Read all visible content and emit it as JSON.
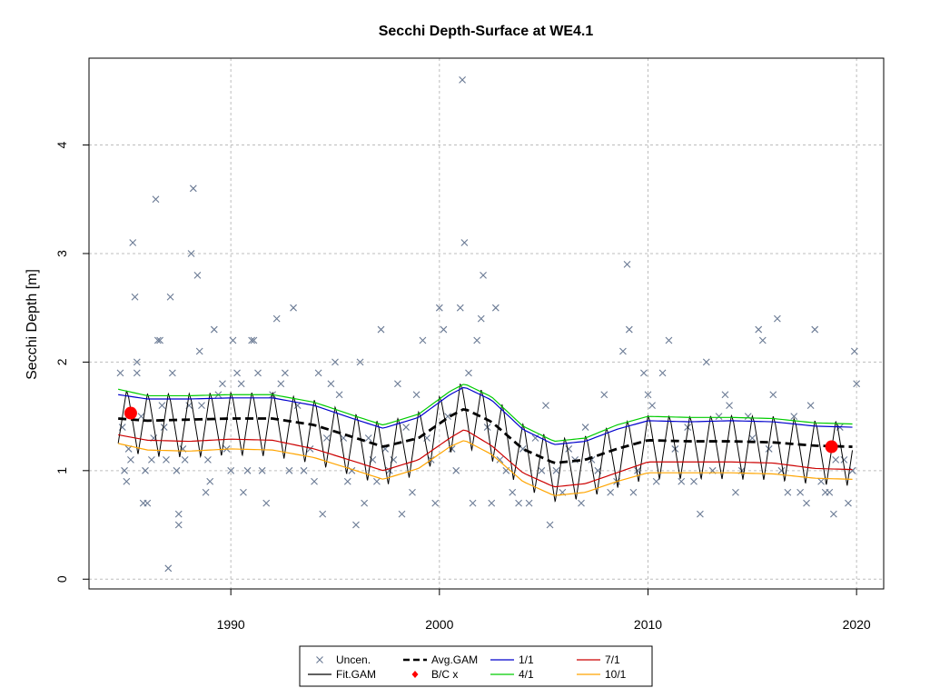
{
  "chart_data": {
    "type": "line",
    "title": "Secchi Depth-Surface at WE4.1",
    "xlabel": "",
    "ylabel": "Secchi Depth [m]",
    "xlim": [
      1983.2,
      2021.3
    ],
    "ylim": [
      -0.09,
      4.8
    ],
    "x_ticks": [
      1990,
      2000,
      2010,
      2020
    ],
    "y_ticks": [
      0,
      1,
      2,
      3,
      4
    ],
    "grid": true,
    "legend_placement": "bottom-center",
    "legend": [
      {
        "label": "Uncen.",
        "style": "cross",
        "color": "#6a7a94"
      },
      {
        "label": "Fit.GAM",
        "style": "line",
        "color": "#000000"
      },
      {
        "label": "Avg.GAM",
        "style": "dashed",
        "color": "#000000"
      },
      {
        "label": "B/C x",
        "style": "diamond",
        "color": "#ff0000"
      },
      {
        "label": "1/1",
        "style": "line",
        "color": "#0000cc"
      },
      {
        "label": "4/1",
        "style": "line",
        "color": "#00cc00"
      },
      {
        "label": "7/1",
        "style": "line",
        "color": "#cc0000"
      },
      {
        "label": "10/1",
        "style": "line",
        "color": "#ffa500"
      }
    ],
    "series": [
      {
        "name": "Avg.GAM",
        "x": [
          1984.6,
          1986,
          1988,
          1990,
          1992,
          1994,
          1996,
          1997.3,
          1999,
          2000.5,
          2001.2,
          2002.5,
          2004,
          2005.5,
          2007,
          2008.5,
          2010,
          2012,
          2014,
          2016,
          2018,
          2019.8
        ],
        "y": [
          1.48,
          1.46,
          1.47,
          1.48,
          1.48,
          1.42,
          1.3,
          1.22,
          1.3,
          1.5,
          1.57,
          1.45,
          1.2,
          1.07,
          1.1,
          1.2,
          1.28,
          1.27,
          1.27,
          1.26,
          1.23,
          1.22
        ]
      },
      {
        "name": "1/1",
        "x": [
          1984.6,
          1986,
          1988,
          1990,
          1992,
          1994,
          1996,
          1997.3,
          1999,
          2000.5,
          2001.2,
          2002.5,
          2004,
          2005.5,
          2007,
          2008.5,
          2010,
          2012,
          2014,
          2016,
          2018,
          2019.8
        ],
        "y": [
          1.7,
          1.66,
          1.66,
          1.67,
          1.67,
          1.6,
          1.47,
          1.39,
          1.49,
          1.7,
          1.77,
          1.65,
          1.38,
          1.24,
          1.27,
          1.38,
          1.46,
          1.45,
          1.46,
          1.45,
          1.41,
          1.4
        ]
      },
      {
        "name": "4/1",
        "x": [
          1984.6,
          1986,
          1988,
          1990,
          1992,
          1994,
          1996,
          1997.3,
          1999,
          2000.5,
          2001.2,
          2002.5,
          2004,
          2005.5,
          2007,
          2008.5,
          2010,
          2012,
          2014,
          2016,
          2018,
          2019.8
        ],
        "y": [
          1.75,
          1.69,
          1.69,
          1.7,
          1.7,
          1.63,
          1.5,
          1.42,
          1.52,
          1.73,
          1.8,
          1.68,
          1.41,
          1.27,
          1.3,
          1.42,
          1.5,
          1.49,
          1.49,
          1.48,
          1.44,
          1.43
        ]
      },
      {
        "name": "7/1",
        "x": [
          1984.6,
          1986,
          1988,
          1990,
          1992,
          1994,
          1996,
          1997.3,
          1999,
          2000.5,
          2001.2,
          2002.5,
          2004,
          2005.5,
          2007,
          2008.5,
          2010,
          2012,
          2014,
          2016,
          2018,
          2019.8
        ],
        "y": [
          1.33,
          1.28,
          1.27,
          1.29,
          1.28,
          1.2,
          1.08,
          1.0,
          1.1,
          1.3,
          1.38,
          1.23,
          0.98,
          0.85,
          0.88,
          0.98,
          1.08,
          1.08,
          1.08,
          1.07,
          1.02,
          1.01
        ]
      },
      {
        "name": "10/1",
        "x": [
          1984.6,
          1986,
          1988,
          1990,
          1992,
          1994,
          1996,
          1997.3,
          1999,
          2000.5,
          2001.2,
          2002.5,
          2004,
          2005.5,
          2007,
          2008.5,
          2010,
          2012,
          2014,
          2016,
          2018,
          2019.8
        ],
        "y": [
          1.25,
          1.19,
          1.18,
          1.2,
          1.19,
          1.12,
          1.0,
          0.92,
          1.02,
          1.22,
          1.28,
          1.15,
          0.9,
          0.77,
          0.8,
          0.9,
          0.98,
          0.98,
          0.98,
          0.97,
          0.93,
          0.92
        ]
      }
    ],
    "bc_points": [
      {
        "x": 1985.2,
        "y": 1.53
      },
      {
        "x": 2018.8,
        "y": 1.22
      }
    ],
    "uncen_points": [
      [
        1984.7,
        1.9
      ],
      [
        1984.8,
        1.4
      ],
      [
        1984.9,
        1.0
      ],
      [
        1985.0,
        0.9
      ],
      [
        1985.1,
        1.2
      ],
      [
        1985.2,
        1.1
      ],
      [
        1985.3,
        3.1
      ],
      [
        1985.4,
        2.6
      ],
      [
        1985.5,
        2.0
      ],
      [
        1985.5,
        1.9
      ],
      [
        1985.7,
        1.5
      ],
      [
        1985.8,
        0.7
      ],
      [
        1985.9,
        1.0
      ],
      [
        1986.0,
        0.7
      ],
      [
        1986.2,
        1.1
      ],
      [
        1986.3,
        1.3
      ],
      [
        1986.4,
        3.5
      ],
      [
        1986.5,
        2.2
      ],
      [
        1986.6,
        2.2
      ],
      [
        1986.7,
        1.6
      ],
      [
        1986.8,
        1.4
      ],
      [
        1986.9,
        1.1
      ],
      [
        1987.0,
        0.1
      ],
      [
        1987.1,
        2.6
      ],
      [
        1987.2,
        1.9
      ],
      [
        1987.4,
        1.0
      ],
      [
        1987.5,
        0.6
      ],
      [
        1987.5,
        0.5
      ],
      [
        1987.7,
        1.2
      ],
      [
        1987.8,
        1.1
      ],
      [
        1988.0,
        1.6
      ],
      [
        1988.1,
        3.0
      ],
      [
        1988.2,
        3.6
      ],
      [
        1988.4,
        2.8
      ],
      [
        1988.5,
        2.1
      ],
      [
        1988.6,
        1.6
      ],
      [
        1988.8,
        0.8
      ],
      [
        1988.9,
        1.1
      ],
      [
        1989.0,
        0.9
      ],
      [
        1989.2,
        2.3
      ],
      [
        1989.4,
        1.7
      ],
      [
        1989.6,
        1.8
      ],
      [
        1989.8,
        1.2
      ],
      [
        1990.0,
        1.0
      ],
      [
        1990.1,
        2.2
      ],
      [
        1990.3,
        1.9
      ],
      [
        1990.5,
        1.8
      ],
      [
        1990.6,
        0.8
      ],
      [
        1990.8,
        1.0
      ],
      [
        1991.0,
        2.2
      ],
      [
        1991.1,
        2.2
      ],
      [
        1991.3,
        1.9
      ],
      [
        1991.5,
        1.0
      ],
      [
        1991.7,
        0.7
      ],
      [
        1992.0,
        1.7
      ],
      [
        1992.2,
        2.4
      ],
      [
        1992.4,
        1.8
      ],
      [
        1992.6,
        1.9
      ],
      [
        1992.8,
        1.0
      ],
      [
        1993.0,
        2.5
      ],
      [
        1993.2,
        1.6
      ],
      [
        1993.5,
        1.0
      ],
      [
        1993.8,
        1.2
      ],
      [
        1994.0,
        0.9
      ],
      [
        1994.2,
        1.9
      ],
      [
        1994.4,
        0.6
      ],
      [
        1994.6,
        1.3
      ],
      [
        1994.8,
        1.8
      ],
      [
        1995.0,
        2.0
      ],
      [
        1995.2,
        1.7
      ],
      [
        1995.4,
        1.3
      ],
      [
        1995.6,
        0.9
      ],
      [
        1995.8,
        1.0
      ],
      [
        1996.0,
        0.5
      ],
      [
        1996.2,
        2.0
      ],
      [
        1996.4,
        0.7
      ],
      [
        1996.6,
        1.3
      ],
      [
        1996.8,
        1.1
      ],
      [
        1997.0,
        0.9
      ],
      [
        1997.2,
        2.3
      ],
      [
        1997.4,
        1.2
      ],
      [
        1997.6,
        1.0
      ],
      [
        1997.8,
        1.1
      ],
      [
        1998.0,
        1.8
      ],
      [
        1998.2,
        0.6
      ],
      [
        1998.4,
        1.4
      ],
      [
        1998.7,
        0.8
      ],
      [
        1998.9,
        1.7
      ],
      [
        1999.2,
        2.2
      ],
      [
        1999.4,
        1.3
      ],
      [
        1999.6,
        1.1
      ],
      [
        1999.8,
        0.7
      ],
      [
        2000.0,
        2.5
      ],
      [
        2000.2,
        2.3
      ],
      [
        2000.4,
        1.5
      ],
      [
        2000.6,
        1.2
      ],
      [
        2000.8,
        1.0
      ],
      [
        2001.0,
        2.5
      ],
      [
        2001.1,
        4.6
      ],
      [
        2001.2,
        3.1
      ],
      [
        2001.4,
        1.9
      ],
      [
        2001.6,
        0.7
      ],
      [
        2001.8,
        2.2
      ],
      [
        2002.0,
        2.4
      ],
      [
        2002.1,
        2.8
      ],
      [
        2002.3,
        1.4
      ],
      [
        2002.5,
        0.7
      ],
      [
        2002.7,
        2.5
      ],
      [
        2002.9,
        1.1
      ],
      [
        2003.2,
        1.0
      ],
      [
        2003.5,
        0.8
      ],
      [
        2003.8,
        0.7
      ],
      [
        2004.0,
        1.2
      ],
      [
        2004.3,
        0.7
      ],
      [
        2004.6,
        1.3
      ],
      [
        2004.9,
        1.0
      ],
      [
        2005.1,
        1.6
      ],
      [
        2005.3,
        0.5
      ],
      [
        2005.6,
        1.0
      ],
      [
        2005.9,
        0.8
      ],
      [
        2006.2,
        1.2
      ],
      [
        2006.5,
        1.1
      ],
      [
        2006.8,
        0.7
      ],
      [
        2007.0,
        1.4
      ],
      [
        2007.3,
        1.1
      ],
      [
        2007.6,
        1.0
      ],
      [
        2007.9,
        1.7
      ],
      [
        2008.2,
        0.8
      ],
      [
        2008.5,
        0.9
      ],
      [
        2008.8,
        2.1
      ],
      [
        2009.0,
        2.9
      ],
      [
        2009.1,
        2.3
      ],
      [
        2009.3,
        0.8
      ],
      [
        2009.5,
        1.0
      ],
      [
        2009.8,
        1.9
      ],
      [
        2010.0,
        1.7
      ],
      [
        2010.2,
        1.6
      ],
      [
        2010.4,
        0.9
      ],
      [
        2010.7,
        1.9
      ],
      [
        2011.0,
        2.2
      ],
      [
        2011.3,
        1.2
      ],
      [
        2011.6,
        0.9
      ],
      [
        2011.9,
        1.4
      ],
      [
        2012.2,
        0.9
      ],
      [
        2012.5,
        0.6
      ],
      [
        2012.8,
        2.0
      ],
      [
        2013.1,
        1.0
      ],
      [
        2013.4,
        1.5
      ],
      [
        2013.7,
        1.7
      ],
      [
        2013.9,
        1.6
      ],
      [
        2014.2,
        0.8
      ],
      [
        2014.5,
        1.0
      ],
      [
        2014.8,
        1.5
      ],
      [
        2015.0,
        1.3
      ],
      [
        2015.3,
        2.3
      ],
      [
        2015.5,
        2.2
      ],
      [
        2015.8,
        1.2
      ],
      [
        2016.0,
        1.7
      ],
      [
        2016.2,
        2.4
      ],
      [
        2016.4,
        1.0
      ],
      [
        2016.7,
        0.8
      ],
      [
        2017.0,
        1.5
      ],
      [
        2017.3,
        0.8
      ],
      [
        2017.6,
        0.7
      ],
      [
        2017.8,
        1.6
      ],
      [
        2018.0,
        2.3
      ],
      [
        2018.3,
        0.9
      ],
      [
        2018.5,
        0.8
      ],
      [
        2018.7,
        0.8
      ],
      [
        2018.9,
        0.6
      ],
      [
        2019.0,
        1.1
      ],
      [
        2019.2,
        1.4
      ],
      [
        2019.4,
        1.1
      ],
      [
        2019.6,
        0.7
      ],
      [
        2019.8,
        1.0
      ],
      [
        2019.9,
        2.1
      ],
      [
        2020.0,
        1.8
      ]
    ]
  }
}
